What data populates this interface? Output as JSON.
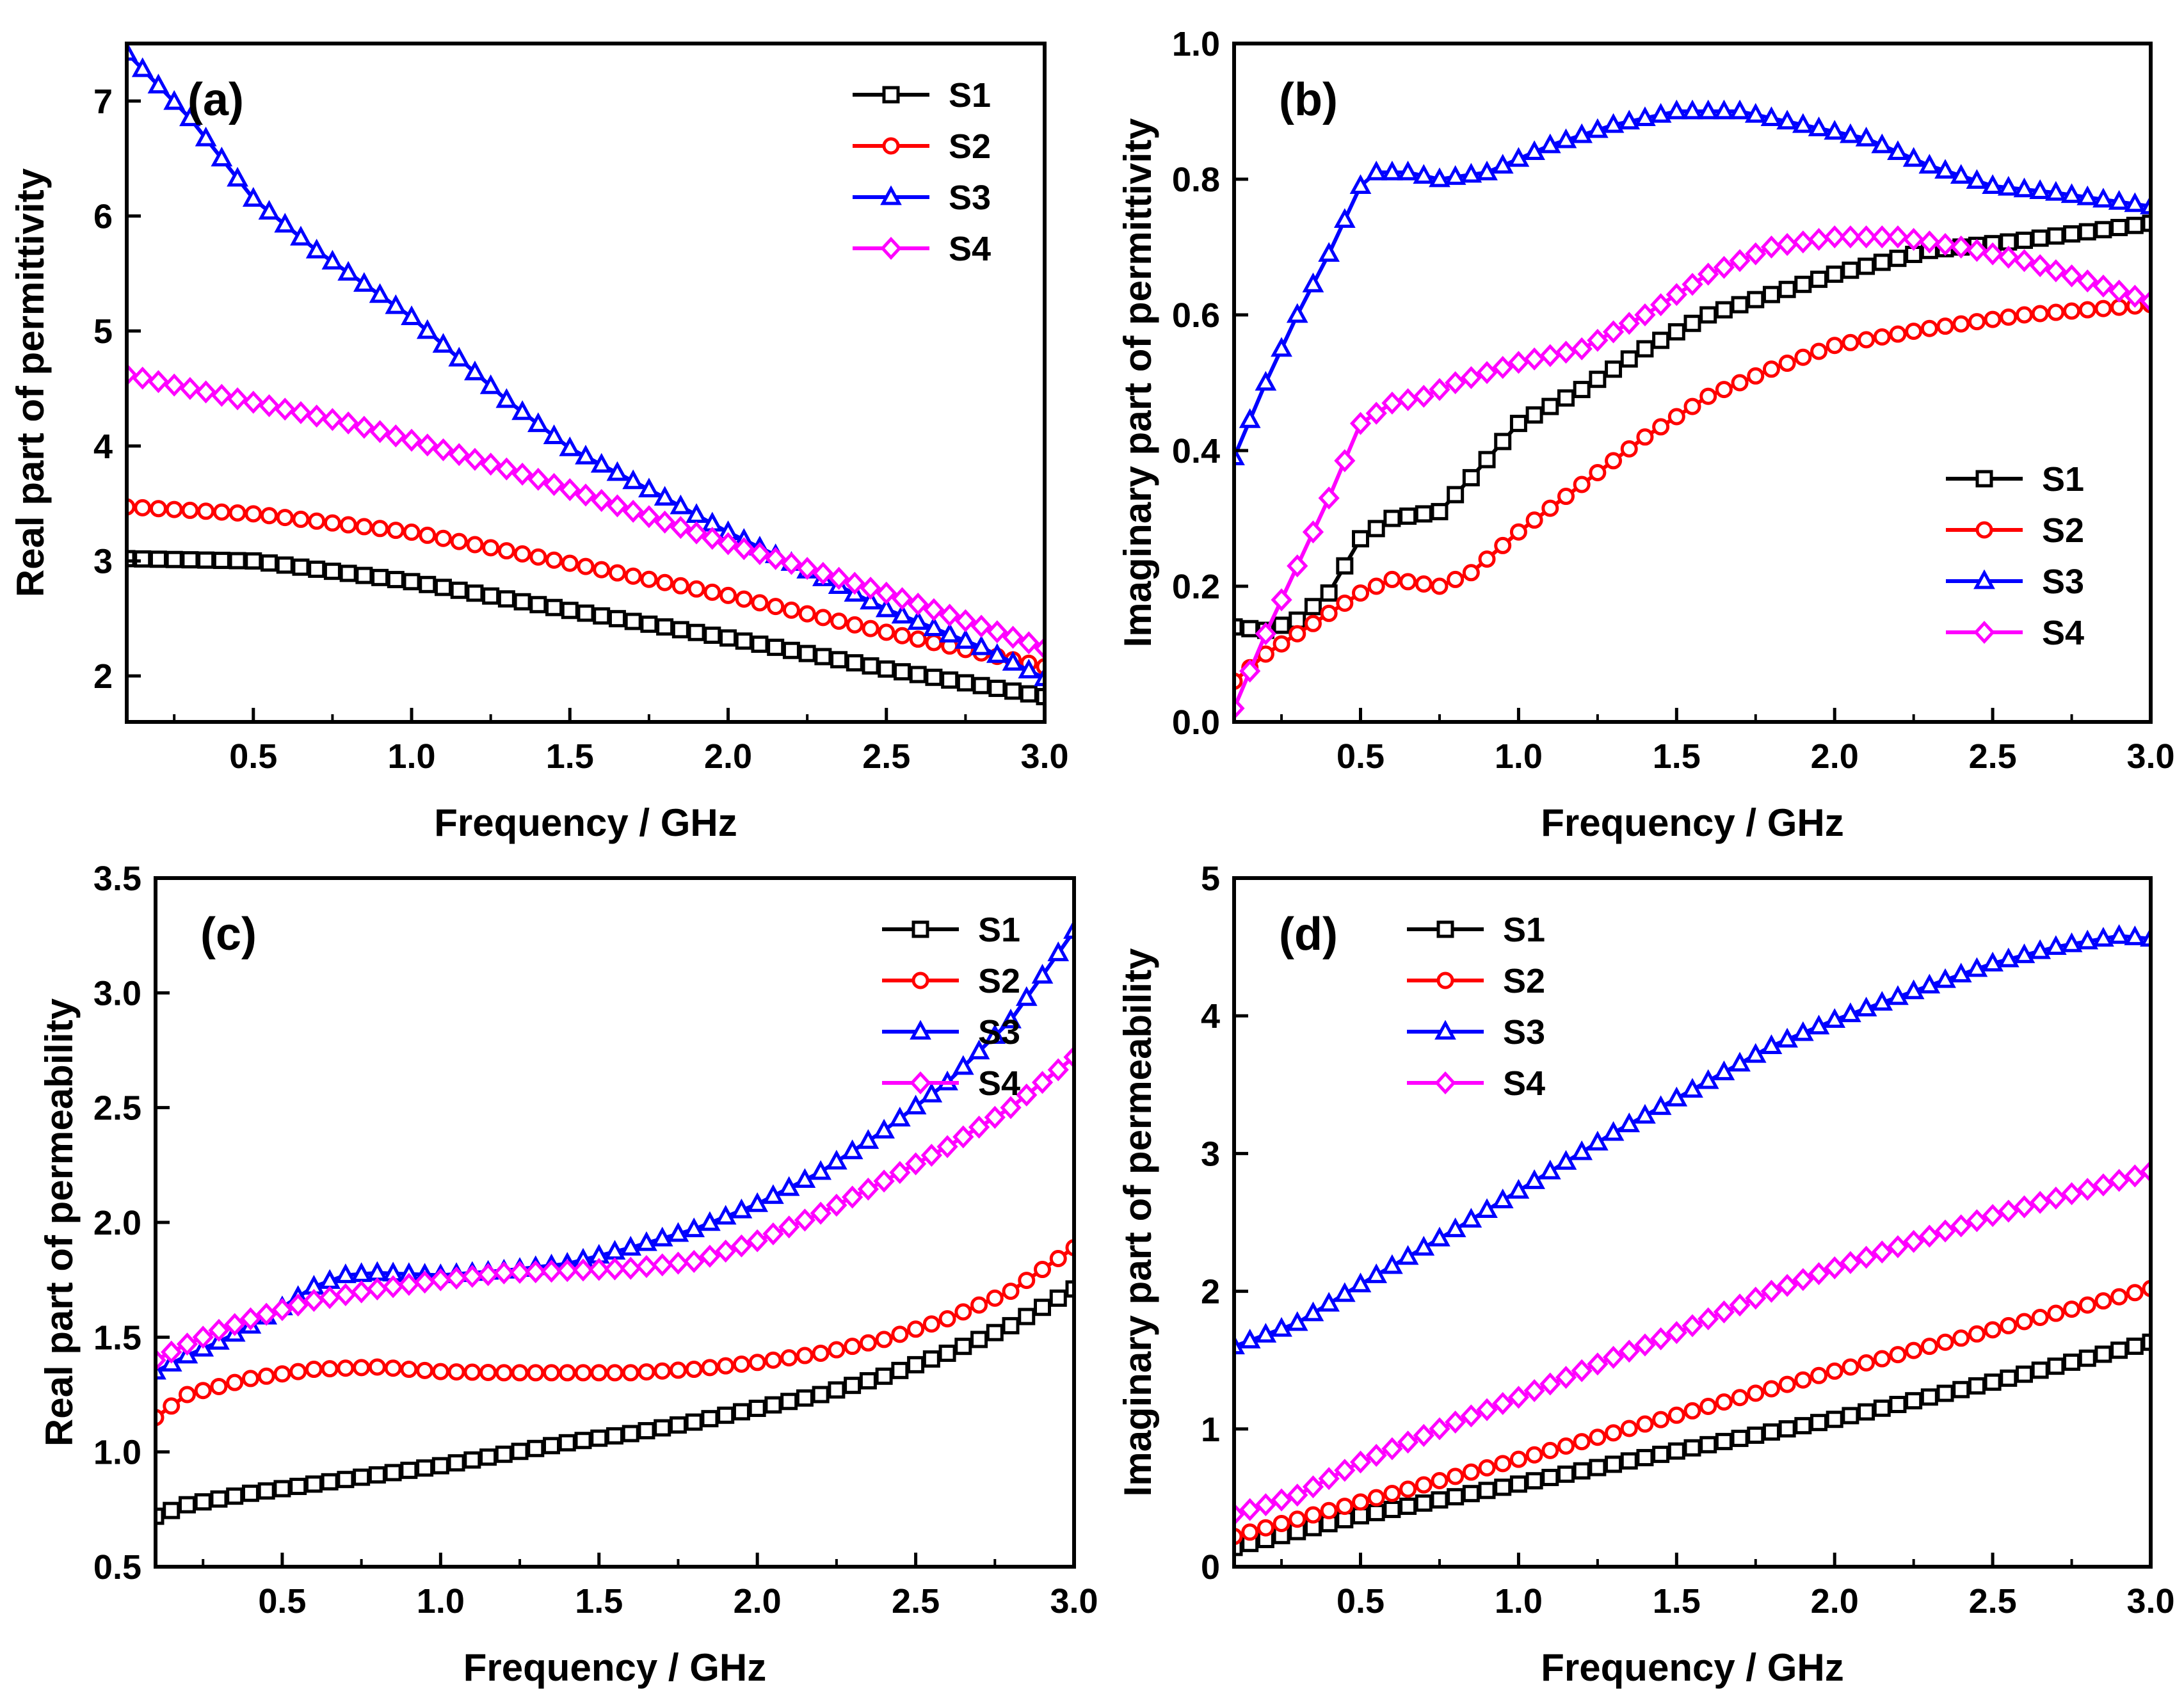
{
  "chart_data": [
    {
      "id": "a",
      "type": "line",
      "panel_label": "(a)",
      "xlabel": "Frequency / GHz",
      "ylabel": "Real part of permittivity",
      "xlim": [
        0.1,
        3.0
      ],
      "ylim": [
        1.6,
        7.5
      ],
      "xticks": [
        0.5,
        1.0,
        1.5,
        2.0,
        2.5,
        3.0
      ],
      "xtick_labels": [
        "0.5",
        "1.0",
        "1.5",
        "2.0",
        "2.5",
        "3.0"
      ],
      "yticks": [
        2,
        3,
        4,
        5,
        6,
        7
      ],
      "ytick_labels": [
        "2",
        "3",
        "4",
        "5",
        "6",
        "7"
      ],
      "legend_position": "top-right",
      "series": [
        {
          "name": "S1",
          "color": "#000000",
          "marker": "square",
          "points": [
            [
              0.1,
              3.02
            ],
            [
              0.5,
              3.0
            ],
            [
              1.0,
              2.82
            ],
            [
              1.5,
              2.57
            ],
            [
              2.0,
              2.33
            ],
            [
              2.5,
              2.06
            ],
            [
              3.0,
              1.82
            ]
          ]
        },
        {
          "name": "S2",
          "color": "#ff0000",
          "marker": "circle",
          "points": [
            [
              0.1,
              3.47
            ],
            [
              0.5,
              3.41
            ],
            [
              1.0,
              3.25
            ],
            [
              1.5,
              2.98
            ],
            [
              2.0,
              2.7
            ],
            [
              2.5,
              2.38
            ],
            [
              3.0,
              2.08
            ]
          ]
        },
        {
          "name": "S3",
          "color": "#0000ff",
          "marker": "triangle",
          "points": [
            [
              0.1,
              7.42
            ],
            [
              0.3,
              6.85
            ],
            [
              0.5,
              6.15
            ],
            [
              0.7,
              5.7
            ],
            [
              1.0,
              5.12
            ],
            [
              1.3,
              4.4
            ],
            [
              1.5,
              3.98
            ],
            [
              1.8,
              3.55
            ],
            [
              2.0,
              3.25
            ],
            [
              2.3,
              2.85
            ],
            [
              2.5,
              2.58
            ],
            [
              2.8,
              2.25
            ],
            [
              3.0,
              1.98
            ]
          ]
        },
        {
          "name": "S4",
          "color": "#ff00ff",
          "marker": "diamond",
          "points": [
            [
              0.1,
              4.62
            ],
            [
              0.3,
              4.5
            ],
            [
              0.5,
              4.38
            ],
            [
              0.8,
              4.2
            ],
            [
              1.0,
              4.05
            ],
            [
              1.3,
              3.8
            ],
            [
              1.5,
              3.62
            ],
            [
              2.0,
              3.15
            ],
            [
              2.5,
              2.72
            ],
            [
              3.0,
              2.24
            ]
          ]
        }
      ]
    },
    {
      "id": "b",
      "type": "line",
      "panel_label": "(b)",
      "xlabel": "Frequency / GHz",
      "ylabel": "Imaginary part of permittivity",
      "xlim": [
        0.1,
        3.0
      ],
      "ylim": [
        0.0,
        1.0
      ],
      "xticks": [
        0.5,
        1.0,
        1.5,
        2.0,
        2.5,
        3.0
      ],
      "xtick_labels": [
        "0.5",
        "1.0",
        "1.5",
        "2.0",
        "2.5",
        "3.0"
      ],
      "yticks": [
        0.0,
        0.2,
        0.4,
        0.6,
        0.8,
        1.0
      ],
      "ytick_labels": [
        "0.0",
        "0.2",
        "0.4",
        "0.6",
        "0.8",
        "1.0"
      ],
      "legend_position": "bottom-right",
      "series": [
        {
          "name": "S1",
          "color": "#000000",
          "marker": "square",
          "points": [
            [
              0.1,
              0.14
            ],
            [
              0.2,
              0.135
            ],
            [
              0.3,
              0.15
            ],
            [
              0.4,
              0.19
            ],
            [
              0.5,
              0.27
            ],
            [
              0.6,
              0.3
            ],
            [
              0.75,
              0.31
            ],
            [
              0.85,
              0.36
            ],
            [
              1.0,
              0.44
            ],
            [
              1.2,
              0.49
            ],
            [
              1.4,
              0.55
            ],
            [
              1.6,
              0.6
            ],
            [
              1.8,
              0.63
            ],
            [
              2.0,
              0.66
            ],
            [
              2.3,
              0.695
            ],
            [
              2.6,
              0.71
            ],
            [
              3.0,
              0.735
            ]
          ]
        },
        {
          "name": "S2",
          "color": "#ff0000",
          "marker": "circle",
          "points": [
            [
              0.1,
              0.06
            ],
            [
              0.2,
              0.1
            ],
            [
              0.3,
              0.13
            ],
            [
              0.4,
              0.16
            ],
            [
              0.5,
              0.19
            ],
            [
              0.6,
              0.21
            ],
            [
              0.75,
              0.2
            ],
            [
              0.85,
              0.22
            ],
            [
              1.0,
              0.28
            ],
            [
              1.2,
              0.35
            ],
            [
              1.4,
              0.42
            ],
            [
              1.6,
              0.48
            ],
            [
              1.8,
              0.52
            ],
            [
              2.0,
              0.555
            ],
            [
              2.3,
              0.58
            ],
            [
              2.6,
              0.6
            ],
            [
              3.0,
              0.615
            ]
          ]
        },
        {
          "name": "S3",
          "color": "#0000ff",
          "marker": "triangle",
          "points": [
            [
              0.1,
              0.39
            ],
            [
              0.2,
              0.5
            ],
            [
              0.3,
              0.6
            ],
            [
              0.4,
              0.69
            ],
            [
              0.5,
              0.79
            ],
            [
              0.55,
              0.81
            ],
            [
              0.65,
              0.81
            ],
            [
              0.75,
              0.8
            ],
            [
              0.9,
              0.81
            ],
            [
              1.1,
              0.85
            ],
            [
              1.3,
              0.88
            ],
            [
              1.5,
              0.9
            ],
            [
              1.7,
              0.9
            ],
            [
              1.9,
              0.88
            ],
            [
              2.1,
              0.86
            ],
            [
              2.3,
              0.82
            ],
            [
              2.5,
              0.79
            ],
            [
              2.7,
              0.78
            ],
            [
              3.0,
              0.76
            ]
          ]
        },
        {
          "name": "S4",
          "color": "#ff00ff",
          "marker": "diamond",
          "points": [
            [
              0.1,
              0.02
            ],
            [
              0.2,
              0.13
            ],
            [
              0.3,
              0.23
            ],
            [
              0.4,
              0.33
            ],
            [
              0.5,
              0.44
            ],
            [
              0.6,
              0.47
            ],
            [
              0.7,
              0.48
            ],
            [
              0.8,
              0.5
            ],
            [
              1.0,
              0.53
            ],
            [
              1.2,
              0.55
            ],
            [
              1.4,
              0.6
            ],
            [
              1.6,
              0.66
            ],
            [
              1.8,
              0.7
            ],
            [
              2.0,
              0.715
            ],
            [
              2.2,
              0.715
            ],
            [
              2.4,
              0.7
            ],
            [
              2.6,
              0.68
            ],
            [
              2.8,
              0.65
            ],
            [
              3.0,
              0.62
            ]
          ]
        }
      ]
    },
    {
      "id": "c",
      "type": "line",
      "panel_label": "(c)",
      "xlabel": "Frequency / GHz",
      "ylabel": "Real part of permeability",
      "xlim": [
        0.1,
        3.0
      ],
      "ylim": [
        0.5,
        3.5
      ],
      "xticks": [
        0.5,
        1.0,
        1.5,
        2.0,
        2.5,
        3.0
      ],
      "xtick_labels": [
        "0.5",
        "1.0",
        "1.5",
        "2.0",
        "2.5",
        "3.0"
      ],
      "yticks": [
        0.5,
        1.0,
        1.5,
        2.0,
        2.5,
        3.0,
        3.5
      ],
      "ytick_labels": [
        "0.5",
        "1.0",
        "1.5",
        "2.0",
        "2.5",
        "3.0",
        "3.5"
      ],
      "legend_position": "top-right",
      "series": [
        {
          "name": "S1",
          "color": "#000000",
          "marker": "square",
          "points": [
            [
              0.1,
              0.72
            ],
            [
              0.2,
              0.77
            ],
            [
              0.4,
              0.82
            ],
            [
              0.6,
              0.86
            ],
            [
              0.8,
              0.9
            ],
            [
              1.0,
              0.94
            ],
            [
              1.2,
              0.99
            ],
            [
              1.4,
              1.04
            ],
            [
              1.6,
              1.08
            ],
            [
              1.8,
              1.13
            ],
            [
              2.0,
              1.19
            ],
            [
              2.2,
              1.25
            ],
            [
              2.4,
              1.33
            ],
            [
              2.6,
              1.43
            ],
            [
              2.8,
              1.55
            ],
            [
              3.0,
              1.71
            ]
          ]
        },
        {
          "name": "S2",
          "color": "#ff0000",
          "marker": "circle",
          "points": [
            [
              0.1,
              1.15
            ],
            [
              0.2,
              1.25
            ],
            [
              0.4,
              1.32
            ],
            [
              0.6,
              1.36
            ],
            [
              0.8,
              1.37
            ],
            [
              1.0,
              1.35
            ],
            [
              1.2,
              1.345
            ],
            [
              1.4,
              1.345
            ],
            [
              1.6,
              1.345
            ],
            [
              1.8,
              1.36
            ],
            [
              2.0,
              1.39
            ],
            [
              2.2,
              1.43
            ],
            [
              2.4,
              1.49
            ],
            [
              2.6,
              1.58
            ],
            [
              2.8,
              1.7
            ],
            [
              3.0,
              1.89
            ]
          ]
        },
        {
          "name": "S3",
          "color": "#0000ff",
          "marker": "triangle",
          "points": [
            [
              0.1,
              1.35
            ],
            [
              0.2,
              1.42
            ],
            [
              0.3,
              1.48
            ],
            [
              0.4,
              1.55
            ],
            [
              0.5,
              1.63
            ],
            [
              0.6,
              1.72
            ],
            [
              0.7,
              1.77
            ],
            [
              0.8,
              1.78
            ],
            [
              1.0,
              1.77
            ],
            [
              1.2,
              1.79
            ],
            [
              1.4,
              1.82
            ],
            [
              1.6,
              1.89
            ],
            [
              1.8,
              1.97
            ],
            [
              2.0,
              2.08
            ],
            [
              2.2,
              2.22
            ],
            [
              2.4,
              2.4
            ],
            [
              2.6,
              2.61
            ],
            [
              2.8,
              2.88
            ],
            [
              3.0,
              3.27
            ]
          ]
        },
        {
          "name": "S4",
          "color": "#ff00ff",
          "marker": "diamond",
          "points": [
            [
              0.1,
              1.4
            ],
            [
              0.2,
              1.47
            ],
            [
              0.3,
              1.53
            ],
            [
              0.4,
              1.58
            ],
            [
              0.5,
              1.62
            ],
            [
              0.6,
              1.66
            ],
            [
              0.8,
              1.71
            ],
            [
              1.0,
              1.75
            ],
            [
              1.2,
              1.78
            ],
            [
              1.4,
              1.79
            ],
            [
              1.6,
              1.8
            ],
            [
              1.8,
              1.83
            ],
            [
              2.0,
              1.92
            ],
            [
              2.2,
              2.04
            ],
            [
              2.4,
              2.18
            ],
            [
              2.6,
              2.33
            ],
            [
              2.8,
              2.5
            ],
            [
              3.0,
              2.72
            ]
          ]
        }
      ]
    },
    {
      "id": "d",
      "type": "line",
      "panel_label": "(d)",
      "xlabel": "Frequency / GHz",
      "ylabel": "Imaginary part of permeability",
      "xlim": [
        0.1,
        3.0
      ],
      "ylim": [
        0,
        5
      ],
      "xticks": [
        0.5,
        1.0,
        1.5,
        2.0,
        2.5,
        3.0
      ],
      "xtick_labels": [
        "0.5",
        "1.0",
        "1.5",
        "2.0",
        "2.5",
        "3.0"
      ],
      "yticks": [
        0,
        1,
        2,
        3,
        4,
        5
      ],
      "ytick_labels": [
        "0",
        "1",
        "2",
        "3",
        "4",
        "5"
      ],
      "legend_position": "top-left",
      "series": [
        {
          "name": "S1",
          "color": "#000000",
          "marker": "square",
          "points": [
            [
              0.1,
              0.14
            ],
            [
              0.5,
              0.37
            ],
            [
              1.0,
              0.6
            ],
            [
              1.5,
              0.84
            ],
            [
              2.0,
              1.07
            ],
            [
              2.5,
              1.34
            ],
            [
              3.0,
              1.63
            ]
          ]
        },
        {
          "name": "S2",
          "color": "#ff0000",
          "marker": "circle",
          "points": [
            [
              0.1,
              0.22
            ],
            [
              0.5,
              0.47
            ],
            [
              1.0,
              0.78
            ],
            [
              1.5,
              1.1
            ],
            [
              2.0,
              1.42
            ],
            [
              2.5,
              1.72
            ],
            [
              3.0,
              2.02
            ]
          ]
        },
        {
          "name": "S3",
          "color": "#0000ff",
          "marker": "triangle",
          "points": [
            [
              0.1,
              1.6
            ],
            [
              0.3,
              1.77
            ],
            [
              0.5,
              2.05
            ],
            [
              0.8,
              2.45
            ],
            [
              1.0,
              2.73
            ],
            [
              1.3,
              3.15
            ],
            [
              1.5,
              3.4
            ],
            [
              1.8,
              3.78
            ],
            [
              2.0,
              3.97
            ],
            [
              2.3,
              4.22
            ],
            [
              2.5,
              4.38
            ],
            [
              2.7,
              4.5
            ],
            [
              2.9,
              4.58
            ],
            [
              3.0,
              4.56
            ]
          ]
        },
        {
          "name": "S4",
          "color": "#ff00ff",
          "marker": "diamond",
          "points": [
            [
              0.1,
              0.38
            ],
            [
              0.3,
              0.52
            ],
            [
              0.5,
              0.76
            ],
            [
              0.8,
              1.05
            ],
            [
              1.0,
              1.23
            ],
            [
              1.3,
              1.52
            ],
            [
              1.5,
              1.7
            ],
            [
              1.8,
              2.0
            ],
            [
              2.0,
              2.17
            ],
            [
              2.3,
              2.4
            ],
            [
              2.5,
              2.55
            ],
            [
              2.8,
              2.74
            ],
            [
              3.0,
              2.87
            ]
          ]
        }
      ]
    }
  ]
}
